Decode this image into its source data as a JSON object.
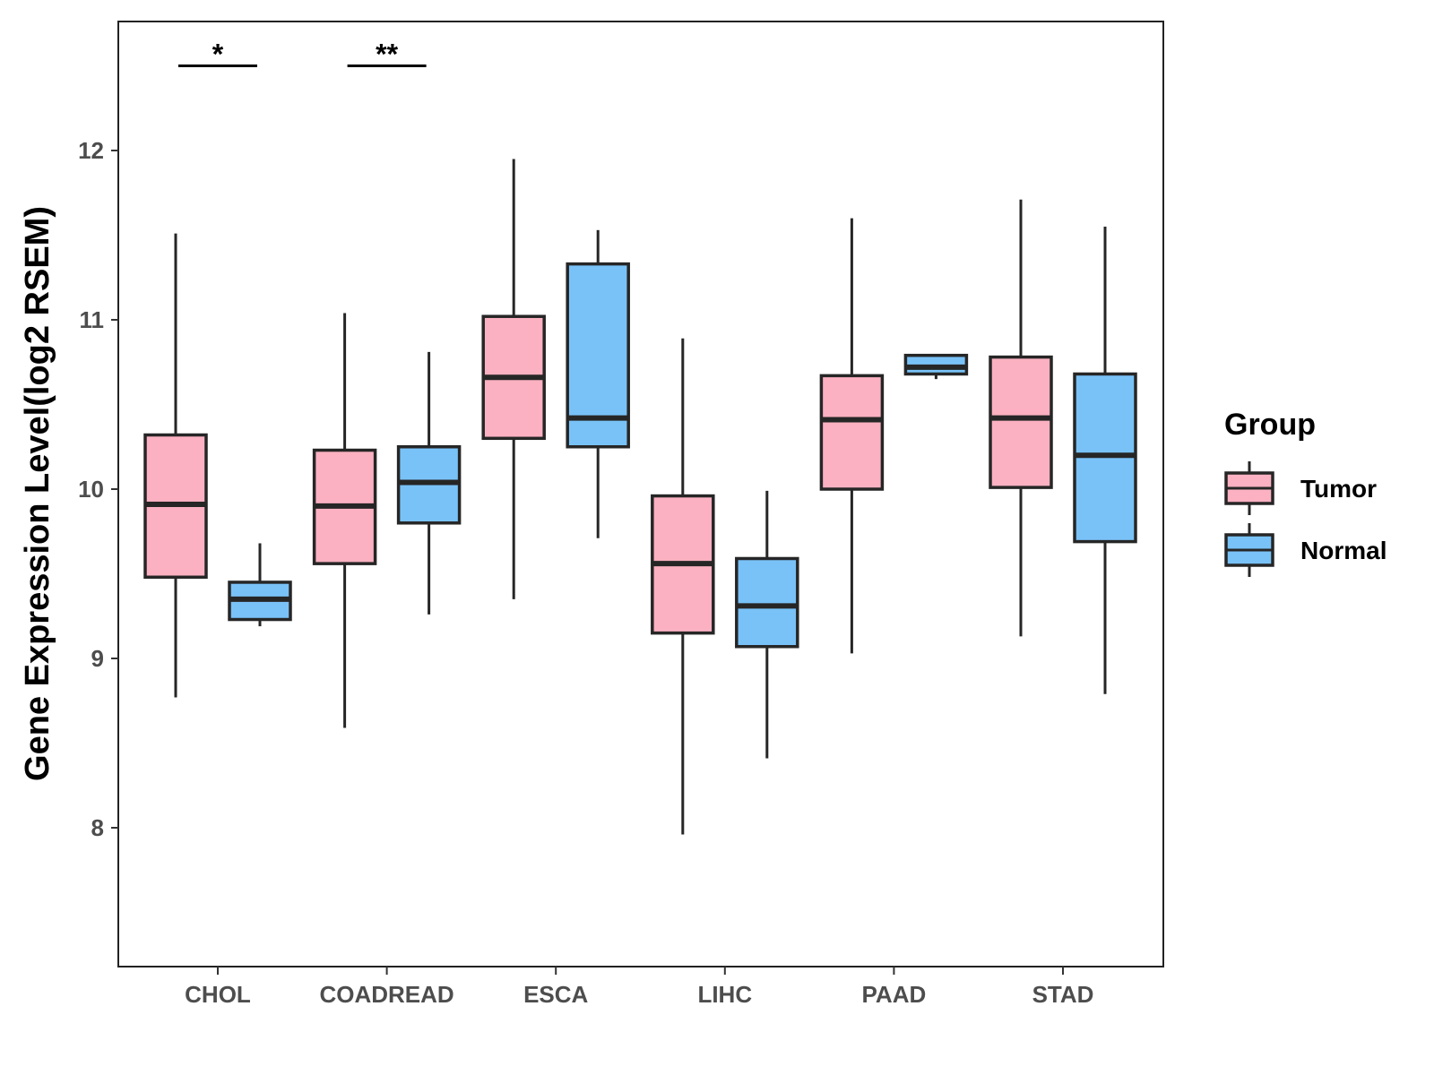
{
  "chart_data": {
    "type": "boxplot",
    "title": "",
    "xlabel": "",
    "ylabel": "Gene Expression Level(log2 RSEM)",
    "ylim": [
      7.2,
      12.8
    ],
    "yticks": [
      8,
      9,
      10,
      11,
      12
    ],
    "ytick_labels": [
      "8",
      "9",
      "10",
      "11",
      "12"
    ],
    "grid": false,
    "categories": [
      "CHOL",
      "COADREAD",
      "ESCA",
      "LIHC",
      "PAAD",
      "STAD"
    ],
    "legend": {
      "title": "Group",
      "position": "right",
      "entries": [
        {
          "name": "Tumor",
          "color": "#fbb1c1"
        },
        {
          "name": "Normal",
          "color": "#79c2f8"
        }
      ]
    },
    "series": [
      {
        "name": "Tumor",
        "color": "#fbb1c1",
        "boxes": [
          {
            "category": "CHOL",
            "min": 8.77,
            "q1": 9.48,
            "median": 9.91,
            "q3": 10.32,
            "max": 11.51
          },
          {
            "category": "COADREAD",
            "min": 8.59,
            "q1": 9.56,
            "median": 9.9,
            "q3": 10.23,
            "max": 11.04
          },
          {
            "category": "ESCA",
            "min": 9.35,
            "q1": 10.3,
            "median": 10.66,
            "q3": 11.02,
            "max": 11.95
          },
          {
            "category": "LIHC",
            "min": 7.96,
            "q1": 9.15,
            "median": 9.56,
            "q3": 9.96,
            "max": 10.89
          },
          {
            "category": "PAAD",
            "min": 9.03,
            "q1": 10.0,
            "median": 10.41,
            "q3": 10.67,
            "max": 11.6
          },
          {
            "category": "STAD",
            "min": 9.13,
            "q1": 10.01,
            "median": 10.42,
            "q3": 10.78,
            "max": 11.71
          }
        ]
      },
      {
        "name": "Normal",
        "color": "#79c2f8",
        "boxes": [
          {
            "category": "CHOL",
            "min": 9.19,
            "q1": 9.23,
            "median": 9.35,
            "q3": 9.45,
            "max": 9.68
          },
          {
            "category": "COADREAD",
            "min": 9.26,
            "q1": 9.8,
            "median": 10.04,
            "q3": 10.25,
            "max": 10.81
          },
          {
            "category": "ESCA",
            "min": 9.71,
            "q1": 10.25,
            "median": 10.42,
            "q3": 11.33,
            "max": 11.53
          },
          {
            "category": "LIHC",
            "min": 8.41,
            "q1": 9.07,
            "median": 9.31,
            "q3": 9.59,
            "max": 9.99
          },
          {
            "category": "PAAD",
            "min": 10.65,
            "q1": 10.68,
            "median": 10.72,
            "q3": 10.79,
            "max": 10.79
          },
          {
            "category": "STAD",
            "min": 8.79,
            "q1": 9.69,
            "median": 10.2,
            "q3": 10.68,
            "max": 11.55
          }
        ]
      }
    ],
    "significance": [
      {
        "category": "CHOL",
        "label": "*",
        "y": 12.5
      },
      {
        "category": "COADREAD",
        "label": "**",
        "y": 12.5
      }
    ]
  }
}
